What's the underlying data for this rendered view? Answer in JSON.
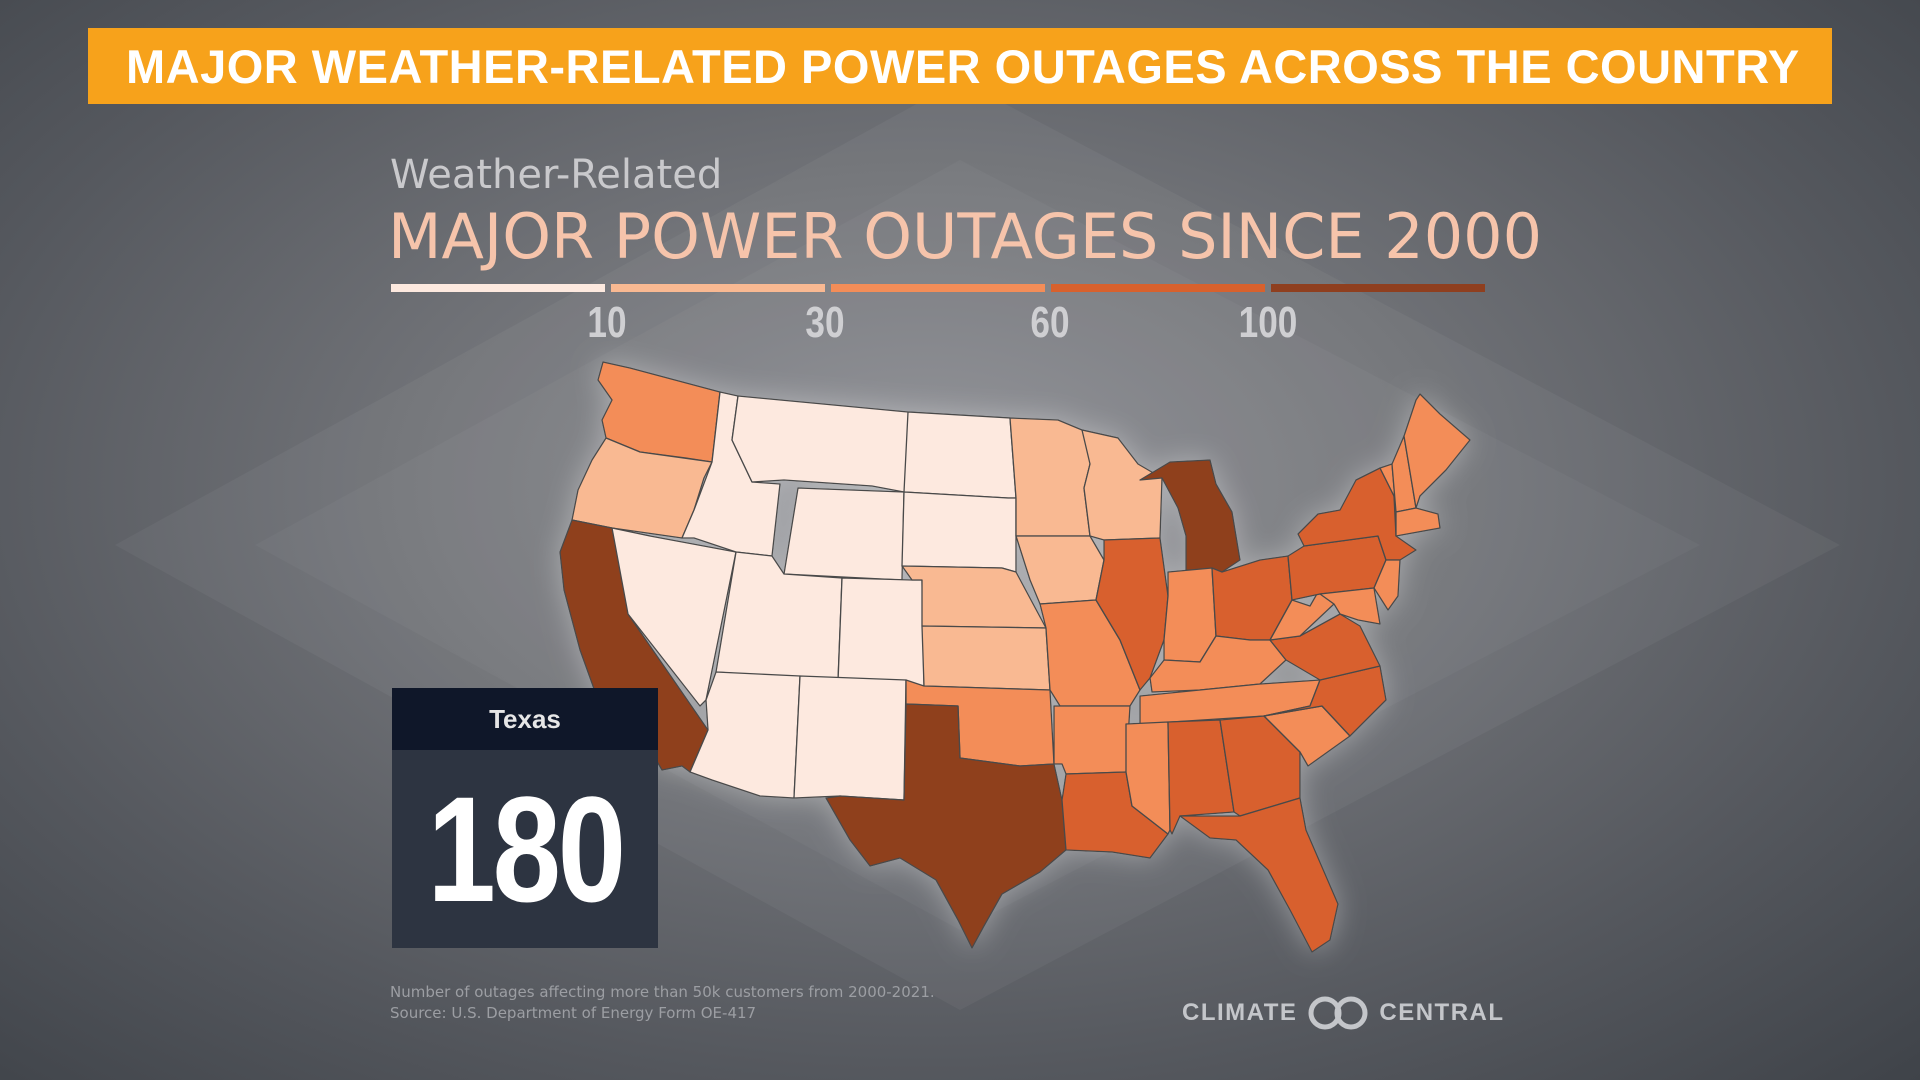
{
  "banner": {
    "text": "MAJOR WEATHER-RELATED POWER OUTAGES ACROSS THE COUNTRY"
  },
  "heading": {
    "subtitle": "Weather-Related",
    "title": "MAJOR POWER OUTAGES SINCE 2000"
  },
  "legend": {
    "colors": [
      "#fde9df",
      "#f9b992",
      "#f38d58",
      "#d8612d",
      "#8f3f1f"
    ],
    "ticks": [
      "10",
      "30",
      "60",
      "100"
    ]
  },
  "callout": {
    "state": "Texas",
    "value": "180"
  },
  "footnote": {
    "line1": "Number of outages affecting more than 50k customers from 2000-2021.",
    "line2": "Source: U.S. Department of Energy Form OE-417"
  },
  "logo": {
    "left": "CLIMATE",
    "right": "CENTRAL",
    "icon": "infinity-rings-icon"
  },
  "map_data": {
    "type": "choropleth",
    "region": "Contiguous United States",
    "highlighted_state": "Texas",
    "state_levels": {
      "Washington": "30-60",
      "Oregon": "10-30",
      "California": "100+",
      "Idaho": "0-10",
      "Nevada": "0-10",
      "Utah": "0-10",
      "Arizona": "0-10",
      "Montana": "0-10",
      "Wyoming": "0-10",
      "Colorado": "0-10",
      "New Mexico": "0-10",
      "North Dakota": "0-10",
      "South Dakota": "0-10",
      "Nebraska": "10-30",
      "Kansas": "10-30",
      "Oklahoma": "30-60",
      "Texas": "100+",
      "Minnesota": "10-30",
      "Iowa": "10-30",
      "Missouri": "30-60",
      "Arkansas": "30-60",
      "Louisiana": "60-100",
      "Wisconsin": "10-30",
      "Illinois": "60-100",
      "Michigan": "100+",
      "Indiana": "30-60",
      "Ohio": "60-100",
      "Kentucky": "30-60",
      "Tennessee": "30-60",
      "Mississippi": "30-60",
      "Alabama": "60-100",
      "Georgia": "60-100",
      "Florida": "60-100",
      "South Carolina": "30-60",
      "North Carolina": "60-100",
      "Virginia": "60-100",
      "West Virginia": "30-60",
      "Pennsylvania": "60-100",
      "New York": "60-100",
      "Maine": "30-60",
      "New Hampshire": "30-60",
      "Vermont": "30-60",
      "Massachusetts": "30-60",
      "New Jersey": "30-60",
      "Maryland": "30-60"
    }
  }
}
